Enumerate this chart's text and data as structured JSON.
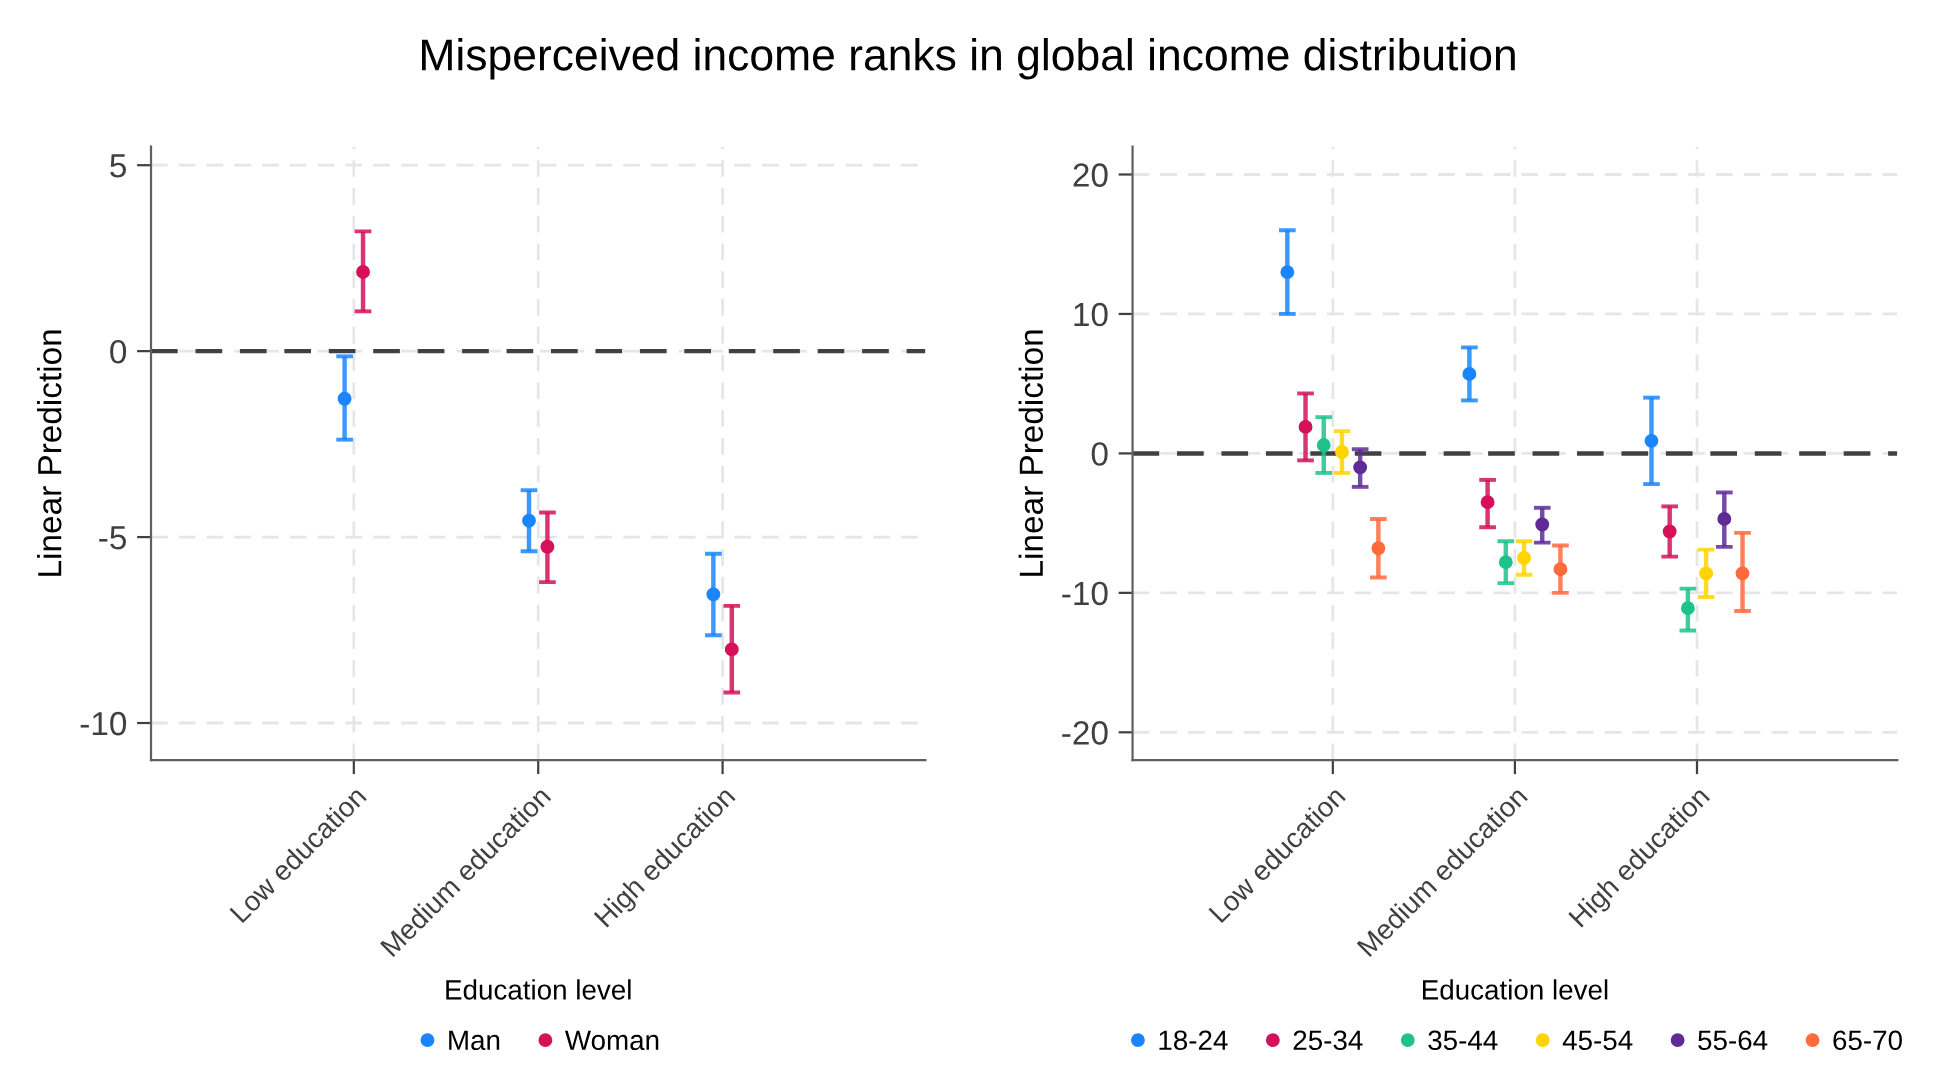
{
  "chart_data": [
    {
      "type": "scatter",
      "title": "Misperceived income ranks in global income distribution",
      "xlabel": "Education level",
      "ylabel": "Linear Prediction",
      "categories": [
        "Low education",
        "Medium education",
        "High education"
      ],
      "ylim": [
        -11,
        5.5
      ],
      "yticks": [
        5,
        0,
        -5,
        -10
      ],
      "grid": true,
      "legend": "bottom",
      "marker": "circle",
      "ref_lines": [
        {
          "axis": "y",
          "value": 0,
          "color": "#404040",
          "line_style": "dashed"
        }
      ],
      "series": [
        {
          "name": "Man",
          "color": "#1a85ff",
          "values": [
            -1.28,
            -4.56,
            -6.54
          ],
          "errors": [
            [
              -2.38,
              -0.14
            ],
            [
              -5.38,
              -3.74
            ],
            [
              -7.64,
              -5.45
            ]
          ]
        },
        {
          "name": "Woman",
          "color": "#d41159",
          "values": [
            2.13,
            -5.26,
            -8.02
          ],
          "errors": [
            [
              1.07,
              3.22
            ],
            [
              -6.21,
              -4.34
            ],
            [
              -9.18,
              -6.85
            ]
          ]
        }
      ]
    },
    {
      "type": "scatter",
      "xlabel": "Education level",
      "ylabel": "Linear Prediction",
      "categories": [
        "Low education",
        "Medium education",
        "High education"
      ],
      "ylim": [
        -22,
        22
      ],
      "yticks": [
        20,
        10,
        0,
        -10,
        -20
      ],
      "grid": true,
      "legend": "bottom",
      "marker": "circle",
      "ref_lines": [
        {
          "axis": "y",
          "value": 0,
          "color": "#404040",
          "line_style": "dashed"
        }
      ],
      "series": [
        {
          "name": "18-24",
          "color": "#1a85ff",
          "values": [
            13.0,
            5.7,
            0.9
          ],
          "errors": [
            [
              10.0,
              16.0
            ],
            [
              3.8,
              7.6
            ],
            [
              -2.2,
              4.0
            ]
          ]
        },
        {
          "name": "25-34",
          "color": "#d41159",
          "values": [
            1.9,
            -3.5,
            -5.6
          ],
          "errors": [
            [
              -0.5,
              4.3
            ],
            [
              -5.3,
              -1.9
            ],
            [
              -7.4,
              -3.8
            ]
          ]
        },
        {
          "name": "35-44",
          "color": "#1ec28b",
          "values": [
            0.6,
            -7.8,
            -11.1
          ],
          "errors": [
            [
              -1.4,
              2.6
            ],
            [
              -9.3,
              -6.3
            ],
            [
              -12.7,
              -9.7
            ]
          ]
        },
        {
          "name": "45-54",
          "color": "#ffd400",
          "values": [
            0.1,
            -7.5,
            -8.6
          ],
          "errors": [
            [
              -1.4,
              1.6
            ],
            [
              -8.7,
              -6.3
            ],
            [
              -10.3,
              -6.9
            ]
          ]
        },
        {
          "name": "55-64",
          "color": "#5e2b97",
          "values": [
            -1.0,
            -5.1,
            -4.7
          ],
          "errors": [
            [
              -2.4,
              0.3
            ],
            [
              -6.4,
              -3.9
            ],
            [
              -6.7,
              -2.8
            ]
          ]
        },
        {
          "name": "65-70",
          "color": "#ff6b3d",
          "values": [
            -6.8,
            -8.3,
            -8.6
          ],
          "errors": [
            [
              -8.9,
              -4.7
            ],
            [
              -10.0,
              -6.6
            ],
            [
              -11.3,
              -5.7
            ]
          ]
        }
      ]
    }
  ]
}
